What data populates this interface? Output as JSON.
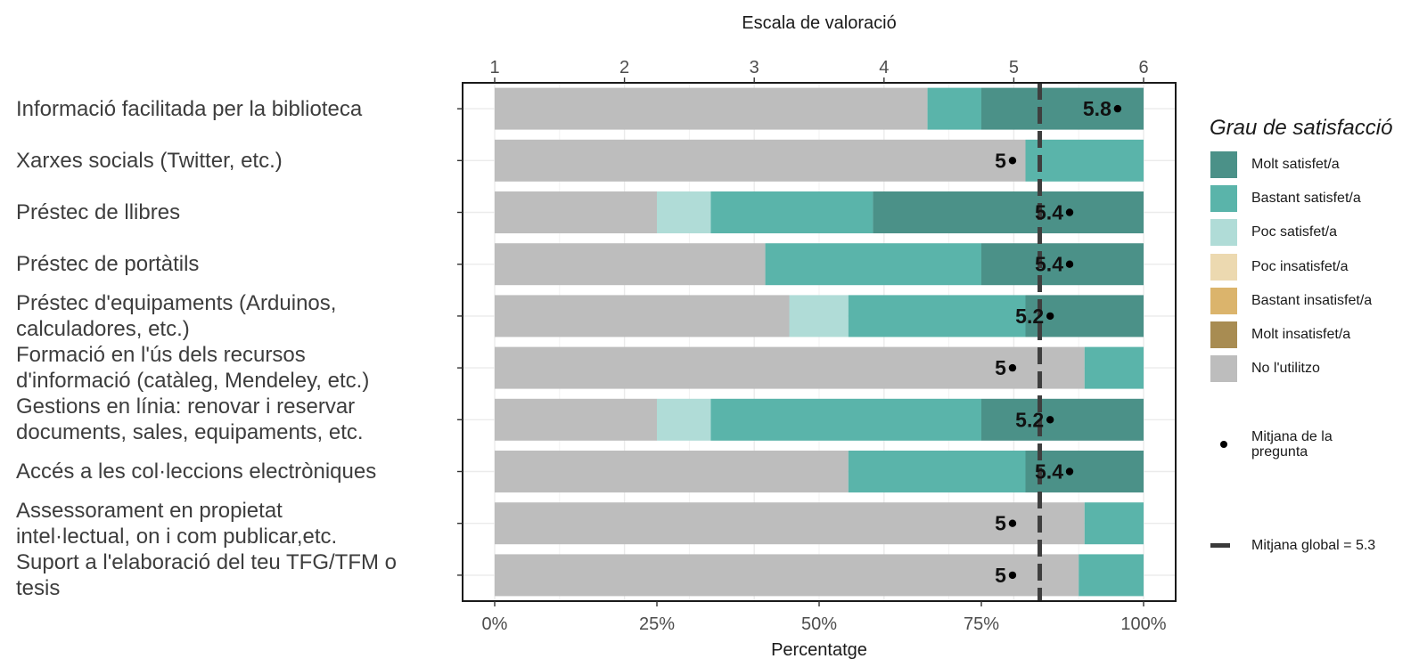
{
  "chart_data": {
    "type": "bar",
    "orientation": "horizontal",
    "stacked": true,
    "title_top_axis": "Escala de valoració",
    "xlabel": "Percentatge",
    "top_axis_ticks": [
      "1",
      "2",
      "3",
      "4",
      "5",
      "6"
    ],
    "top_axis_range": [
      1,
      6
    ],
    "x_ticks": [
      "0%",
      "25%",
      "50%",
      "75%",
      "100%"
    ],
    "xlim": [
      0,
      100
    ],
    "categories": [
      "Informació facilitada per la biblioteca",
      "Xarxes socials (Twitter, etc.)",
      "Préstec de llibres",
      "Préstec de portàtils",
      "Préstec d'equipaments (Arduinos,\ncalculadores, etc.)",
      "Formació en l'ús dels recursos\nd'informació (catàleg, Mendeley, etc.)",
      "Gestions en línia: renovar i reservar\ndocuments, sales, equipaments, etc.",
      "Accés a les col·leccions electròniques",
      "Assessorament en propietat\nintel·lectual, on i com publicar,etc.",
      "Suport a l'elaboració del teu TFG/TFM o\ntesis"
    ],
    "series": [
      {
        "name": "No l'utilitzo",
        "color": "#bdbdbd",
        "values": [
          66.7,
          81.8,
          25.0,
          41.7,
          45.4,
          90.9,
          25.0,
          54.5,
          90.9,
          90.0
        ]
      },
      {
        "name": "Poc insatisfet/a",
        "color": "#ecd9b0",
        "values": [
          0,
          0,
          0,
          0,
          0,
          0,
          0,
          0,
          0,
          0
        ]
      },
      {
        "name": "Bastant insatisfet/a",
        "color": "#dbb46c",
        "values": [
          0,
          0,
          0,
          0,
          0,
          0,
          0,
          0,
          0,
          0
        ]
      },
      {
        "name": "Molt insatisfet/a",
        "color": "#a88c52",
        "values": [
          0,
          0,
          0,
          0,
          0,
          0,
          0,
          0,
          0,
          0
        ]
      },
      {
        "name": "Poc satisfet/a",
        "color": "#b0dcd7",
        "values": [
          0,
          0,
          8.3,
          0,
          9.1,
          0,
          8.3,
          0,
          0,
          0
        ]
      },
      {
        "name": "Bastant satisfet/a",
        "color": "#5ab4aa",
        "values": [
          8.3,
          18.2,
          25.0,
          33.3,
          27.3,
          9.1,
          41.7,
          27.3,
          9.1,
          10.0
        ]
      },
      {
        "name": "Molt satisfet/a",
        "color": "#4b9188",
        "values": [
          25.0,
          0,
          41.7,
          25.0,
          18.2,
          0,
          25.0,
          18.2,
          0,
          0
        ]
      }
    ],
    "means": [
      5.8,
      5,
      5.4,
      5.4,
      5.2,
      5,
      5.2,
      5.4,
      5,
      5
    ],
    "mean_labels": [
      "5.8",
      "5",
      "5.4",
      "5.4",
      "5.2",
      "5",
      "5.2",
      "5.4",
      "5",
      "5"
    ],
    "mean_dot_positions": [
      5.8,
      4.99,
      5.43,
      5.43,
      5.28,
      4.99,
      5.28,
      5.43,
      4.99,
      4.99
    ],
    "global_mean": 5.3,
    "global_mean_position": 5.2,
    "legend": {
      "title": "Grau de satisfacció",
      "position": "right",
      "items": [
        "Molt satisfet/a",
        "Bastant satisfet/a",
        "Poc satisfet/a",
        "Poc insatisfet/a",
        "Bastant insatisfet/a",
        "Molt insatisfet/a",
        "No l'utilitzo"
      ],
      "mean_label": "Mitjana de la\npregunta",
      "global_label": "Mitjana global =  5.3"
    },
    "grid": true
  },
  "colors": {
    "molt_satisfet": "#4b9188",
    "bastant_satisfet": "#5ab4aa",
    "poc_satisfet": "#b0dcd7",
    "poc_insatisfet": "#ecd9b0",
    "bastant_insatisfet": "#dbb46c",
    "molt_insatisfet": "#a88c52",
    "no_utilitzo": "#bdbdbd"
  }
}
